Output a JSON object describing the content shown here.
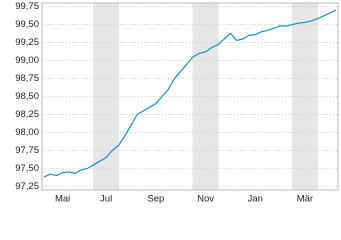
{
  "chart_data": {
    "type": "line",
    "categories": [
      null,
      null,
      null,
      "Mai",
      null,
      null,
      null,
      null,
      null,
      null,
      "Jul",
      null,
      null,
      null,
      null,
      null,
      null,
      null,
      "Sep",
      null,
      null,
      null,
      null,
      null,
      null,
      null,
      "Nov",
      null,
      null,
      null,
      null,
      null,
      null,
      null,
      "Jan",
      null,
      null,
      null,
      null,
      null,
      null,
      null,
      "Mär",
      null,
      null,
      null,
      null,
      null
    ],
    "series": [
      {
        "color": "#1a8fc9",
        "values": [
          97.38,
          97.42,
          97.4,
          97.44,
          97.45,
          97.43,
          97.48,
          97.5,
          97.55,
          97.6,
          97.65,
          97.75,
          97.82,
          97.95,
          98.1,
          98.25,
          98.3,
          98.35,
          98.4,
          98.5,
          98.6,
          98.75,
          98.85,
          98.95,
          99.05,
          99.1,
          99.12,
          99.18,
          99.22,
          99.3,
          99.38,
          99.28,
          99.3,
          99.35,
          99.36,
          99.4,
          99.42,
          99.45,
          99.48,
          99.48,
          99.5,
          99.52,
          99.53,
          99.55,
          99.58,
          99.62,
          99.66,
          99.7
        ]
      }
    ],
    "ylim": [
      97.2,
      99.8
    ],
    "yticks": [
      {
        "value": 97.25,
        "label": "97,25"
      },
      {
        "value": 97.5,
        "label": "97,50"
      },
      {
        "value": 97.75,
        "label": "97,75"
      },
      {
        "value": 98,
        "label": "98,00"
      },
      {
        "value": 98.25,
        "label": "98,25"
      },
      {
        "value": 98.5,
        "label": "98,50"
      },
      {
        "value": 98.75,
        "label": "98,75"
      },
      {
        "value": 99,
        "label": "99,00"
      },
      {
        "value": 99.25,
        "label": "99,25"
      },
      {
        "value": 99.5,
        "label": "99,50"
      },
      {
        "value": 99.75,
        "label": "99,75"
      }
    ],
    "grid": true
  }
}
